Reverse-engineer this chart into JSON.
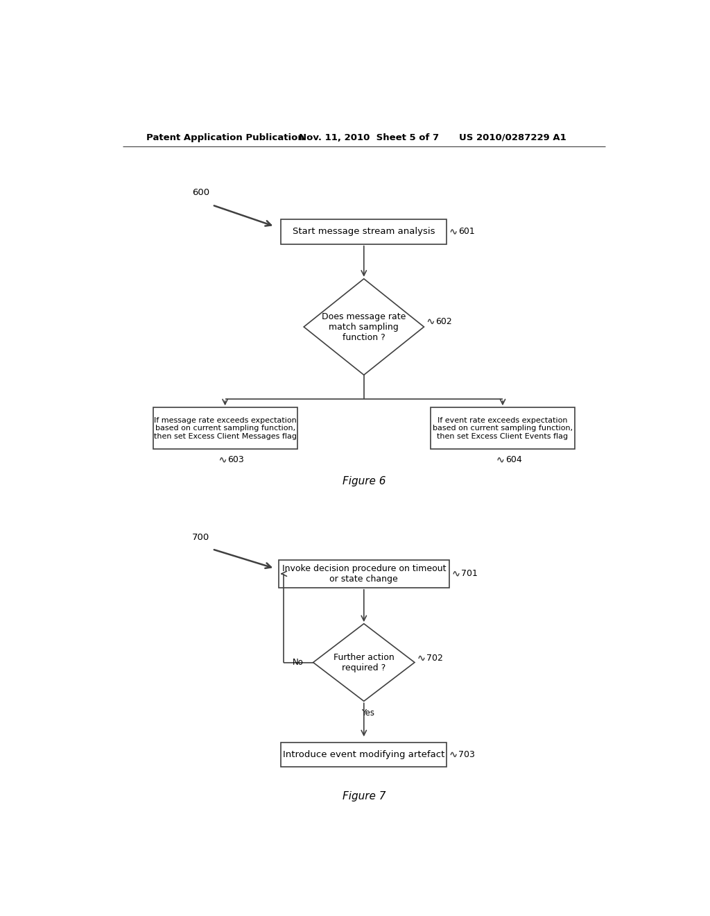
{
  "bg_color": "#ffffff",
  "header_line1": "Patent Application Publication",
  "header_line2": "Nov. 11, 2010  Sheet 5 of 7",
  "header_line3": "US 2010/0287229 A1",
  "fig6_label": "Figure 6",
  "fig7_label": "Figure 7",
  "node601_text": "Start message stream analysis",
  "node602_text": "Does message rate\nmatch sampling\nfunction ?",
  "node603_text": "If message rate exceeds expectation\nbased on current sampling function,\nthen set Excess Client Messages flag",
  "node604_text": "If event rate exceeds expectation\nbased on current sampling function,\nthen set Excess Client Events flag",
  "node701_text": "Invoke decision procedure on timeout\nor state change",
  "node702_text": "Further action\nrequired ?",
  "node703_text": "Introduce event modifying artefact",
  "label600": "600",
  "label601": "601",
  "label602": "602",
  "label603": "603",
  "label604": "604",
  "label700": "700",
  "label701": "701",
  "label702": "702",
  "label703": "703",
  "no_text": "No",
  "yes_text": "Yes",
  "line_color": "#404040",
  "text_color": "#000000",
  "box_edge_color": "#404040",
  "bg_color2": "#ffffff"
}
